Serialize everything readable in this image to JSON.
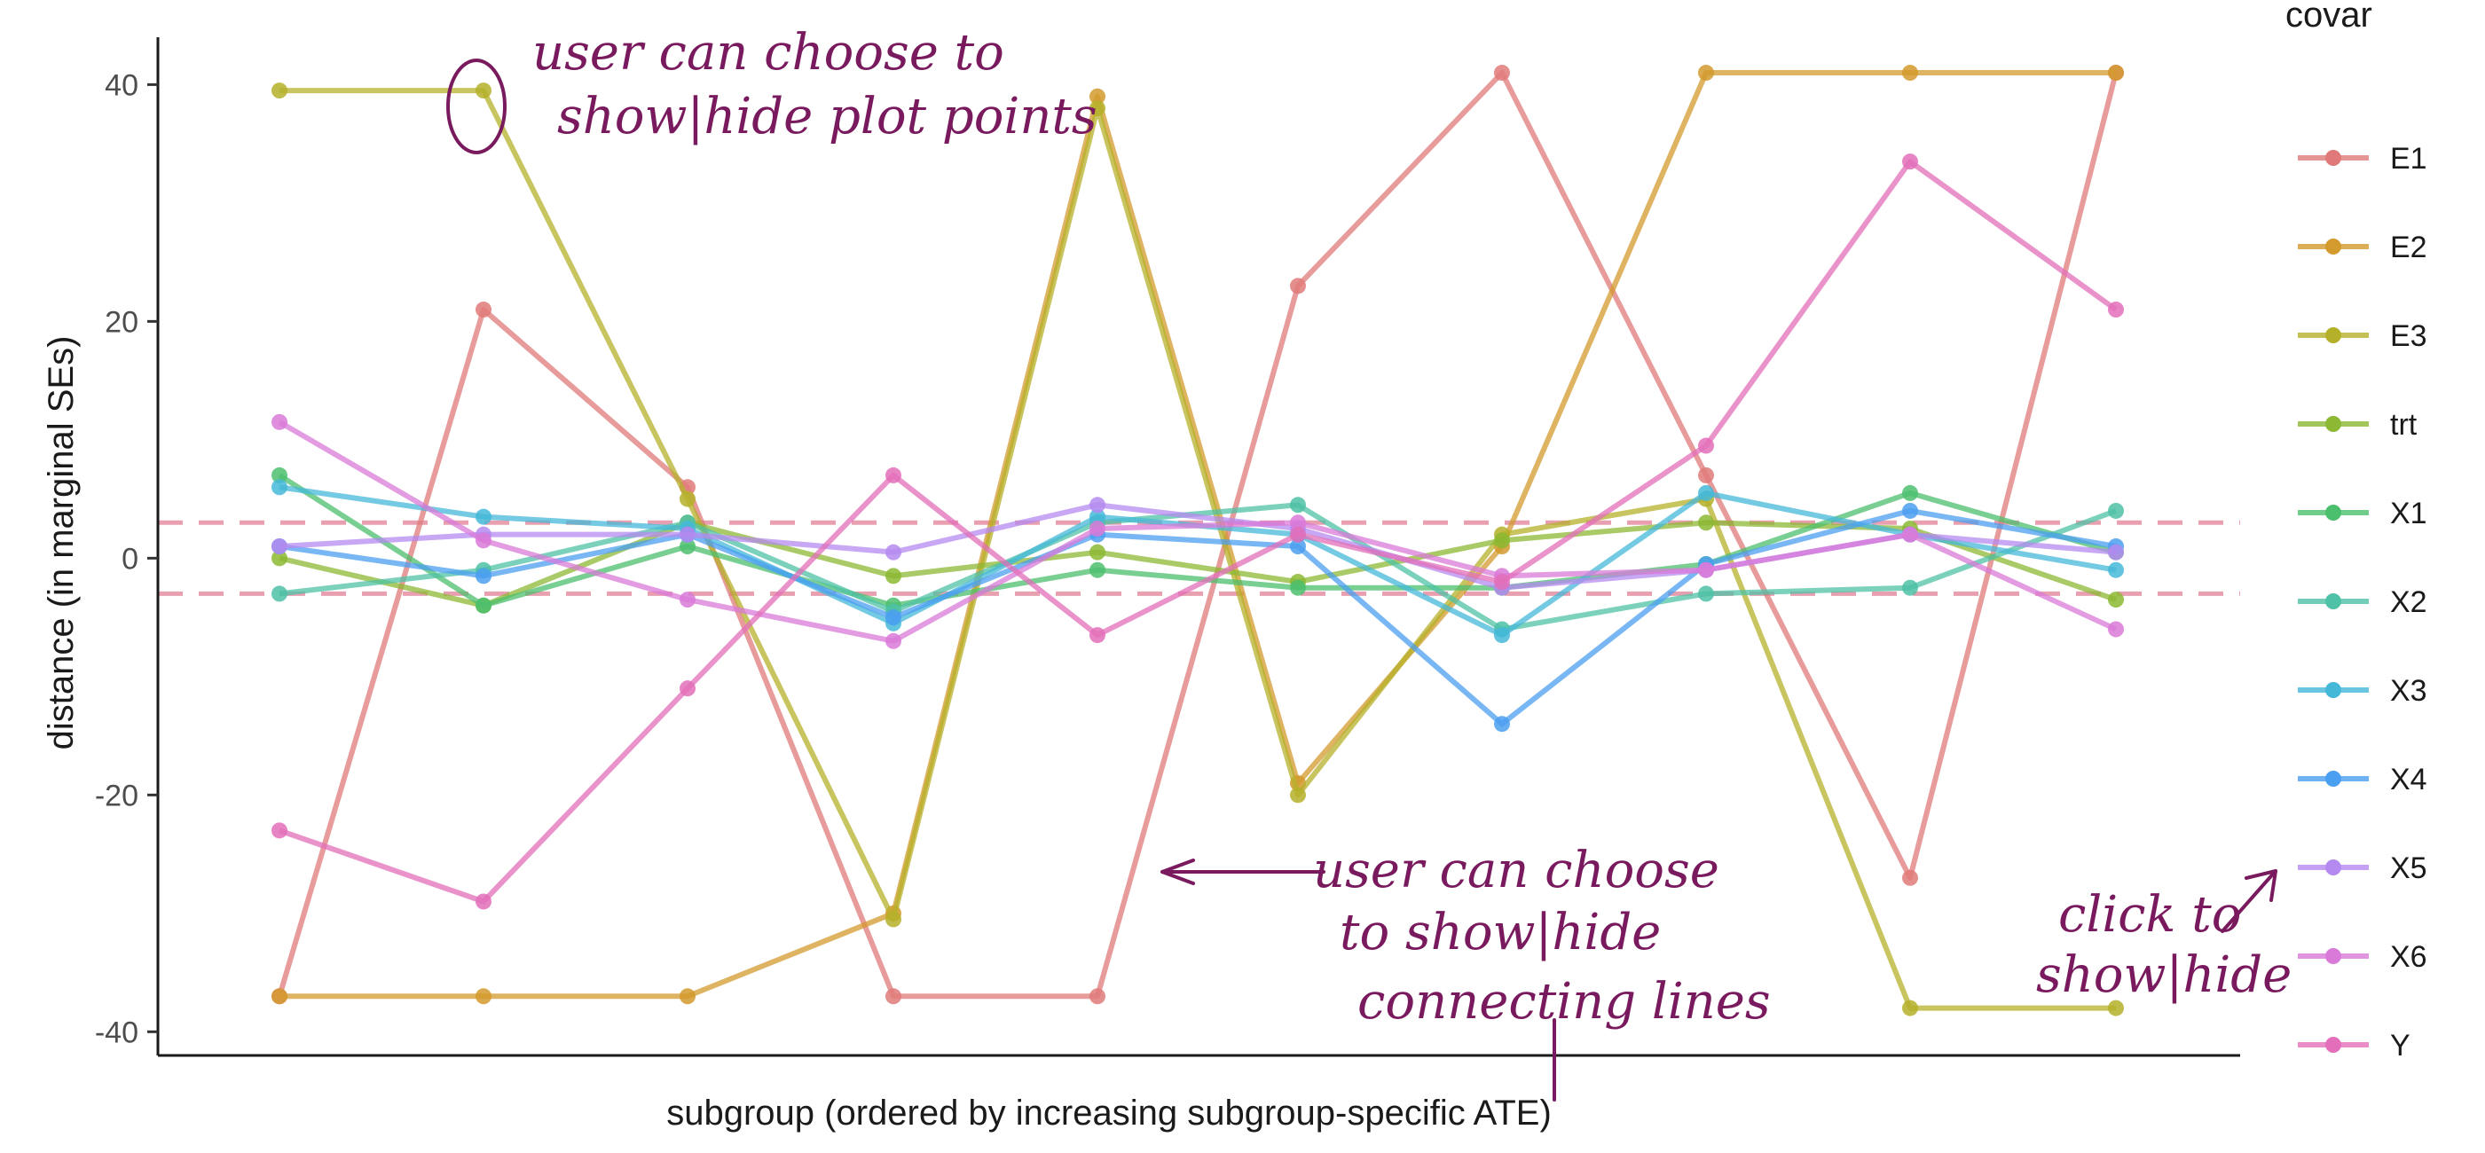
{
  "chart_data": {
    "type": "line",
    "xlabel": "subgroup (ordered by increasing subgroup-specific ATE)",
    "ylabel": "distance (in marginal SEs)",
    "ylim": [
      -42,
      44
    ],
    "yticks": [
      -40,
      -20,
      0,
      20,
      40
    ],
    "x": [
      1,
      2,
      3,
      4,
      5,
      6,
      7,
      8,
      9,
      10,
      11
    ],
    "reference_lines": [
      3,
      -3
    ],
    "reference_color": "#e8a0b0",
    "legend_title": "covar",
    "legend_position": "right",
    "grid": false,
    "series": [
      {
        "name": "E1",
        "color": "#e07a7a",
        "values": [
          -37,
          21,
          6,
          -37,
          -37,
          23,
          41,
          7,
          -27,
          41,
          null
        ]
      },
      {
        "name": "E2",
        "color": "#d39a2e",
        "values": [
          -37,
          -37,
          -37,
          -30,
          39,
          -19,
          1,
          41,
          41,
          41,
          null
        ]
      },
      {
        "name": "E3",
        "color": "#b5b02a",
        "values": [
          39.5,
          39.5,
          5,
          -30.5,
          38,
          -20,
          2,
          5,
          -38,
          -38,
          null
        ]
      },
      {
        "name": "trt",
        "color": "#8cb833",
        "values": [
          0,
          -4,
          3,
          -1.5,
          0.5,
          -2,
          1.5,
          3,
          2.5,
          -3.5,
          null
        ]
      },
      {
        "name": "X1",
        "color": "#4cbf6e",
        "values": [
          7,
          -4,
          1,
          -4,
          -1,
          -2.5,
          -2.5,
          -0.5,
          5.5,
          0.5,
          null
        ]
      },
      {
        "name": "X2",
        "color": "#4fc1a6",
        "values": [
          -3,
          -1,
          3,
          -4.5,
          3,
          4.5,
          -6,
          -3,
          -2.5,
          4,
          null
        ]
      },
      {
        "name": "X3",
        "color": "#45b8d8",
        "values": [
          6,
          3.5,
          2.5,
          -5.5,
          3.5,
          2,
          -6.5,
          5.5,
          2,
          -1,
          null
        ]
      },
      {
        "name": "X4",
        "color": "#4b9ff0",
        "values": [
          1,
          -1.5,
          2,
          -5,
          2,
          1,
          -14,
          -0.5,
          4,
          1,
          null
        ]
      },
      {
        "name": "X5",
        "color": "#b58af0",
        "values": [
          1,
          2,
          2,
          0.5,
          4.5,
          2.5,
          -2.5,
          -1,
          2,
          0.5,
          null
        ]
      },
      {
        "name": "X6",
        "color": "#d97ad8",
        "values": [
          11.5,
          1.5,
          -3.5,
          -7,
          2.5,
          3,
          -1.5,
          -1,
          2,
          -6,
          null
        ]
      },
      {
        "name": "Y",
        "color": "#e36fba",
        "values": [
          -23,
          -29,
          -11,
          7,
          -6.5,
          2,
          -2,
          9.5,
          33.5,
          21,
          null
        ]
      }
    ]
  },
  "annotations": {
    "note_points_line1": "user can choose to",
    "note_points_line2": "show|hide plot points",
    "note_lines_line1": "user can choose",
    "note_lines_line2": "to show|hide",
    "note_lines_line3": "connecting lines",
    "note_click_line1": "click to",
    "note_click_line2": "show|hide",
    "ink_color": "#7a1a5e"
  }
}
